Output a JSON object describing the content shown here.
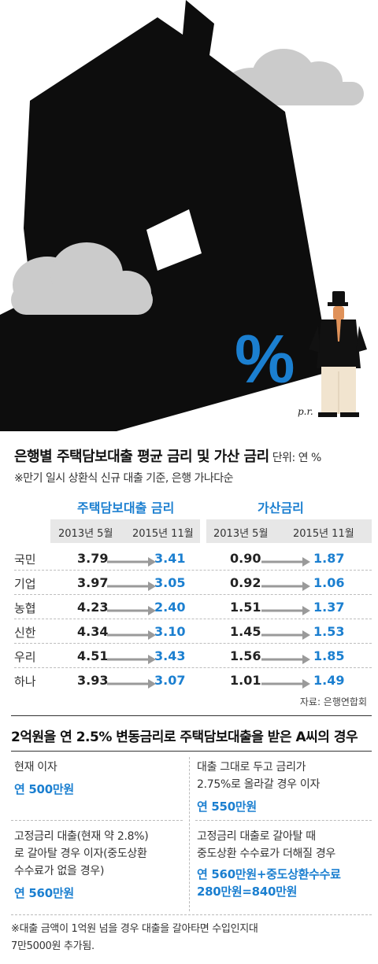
{
  "illustration": {
    "percent_symbol": "%",
    "signature": "p.r.",
    "colors": {
      "house": "#0d0d0d",
      "cloud": "#cbcbcb",
      "percent": "#1b7fd0",
      "suit": "#111111",
      "skin": "#e0925a"
    }
  },
  "rates_table": {
    "title": "은행별 주택담보대출 평균 금리 및 가산 금리",
    "unit": "단위: 연 %",
    "subtitle": "※만기 일시 상환식 신규 대출 기준, 은행 가나다순",
    "group1": "주택담보대출 금리",
    "group2": "가산금리",
    "col_2013": "2013년 5월",
    "col_2015": "2015년 11월",
    "rows": [
      {
        "bank": "국민",
        "loan_2013": "3.79",
        "loan_2015": "3.41",
        "spread_2013": "0.90",
        "spread_2015": "1.87"
      },
      {
        "bank": "기업",
        "loan_2013": "3.97",
        "loan_2015": "3.05",
        "spread_2013": "0.92",
        "spread_2015": "1.06"
      },
      {
        "bank": "농협",
        "loan_2013": "4.23",
        "loan_2015": "2.40",
        "spread_2013": "1.51",
        "spread_2015": "1.37"
      },
      {
        "bank": "신한",
        "loan_2013": "4.34",
        "loan_2015": "3.10",
        "spread_2013": "1.45",
        "spread_2015": "1.53"
      },
      {
        "bank": "우리",
        "loan_2013": "4.51",
        "loan_2015": "3.43",
        "spread_2013": "1.56",
        "spread_2015": "1.85"
      },
      {
        "bank": "하나",
        "loan_2013": "3.93",
        "loan_2015": "3.07",
        "spread_2013": "1.01",
        "spread_2015": "1.49"
      }
    ],
    "source": "자료: 은행연합회",
    "accent_color": "#1b7fd0"
  },
  "case": {
    "title": "2억원을 연 2.5% 변동금리로 주택담보대출을 받은 A씨의 경우",
    "cell1": {
      "line1": "현재 이자",
      "value": "연 500만원"
    },
    "cell2": {
      "line1": "대출 그대로 두고 금리가",
      "line2": "2.75%로 올라갈 경우 이자",
      "value": "연 550만원"
    },
    "cell3": {
      "line1": "고정금리 대출(현재 약 2.8%)",
      "line2": "로 갈아탈 경우 이자(중도상환",
      "line3": "수수료가 없을 경우)",
      "value": "연 560만원"
    },
    "cell4": {
      "line1": "고정금리 대출로 갈아탈 때",
      "line2": "중도상환 수수료가 더해질 경우",
      "value1": "연 560만원+중도상환수수료",
      "value2": "280만원=840만원"
    },
    "note_line1": "※대출 금액이 1억원 넘을 경우 대출을 갈아타면 수입인지대",
    "note_line2": "7만5000원 추가됨."
  }
}
